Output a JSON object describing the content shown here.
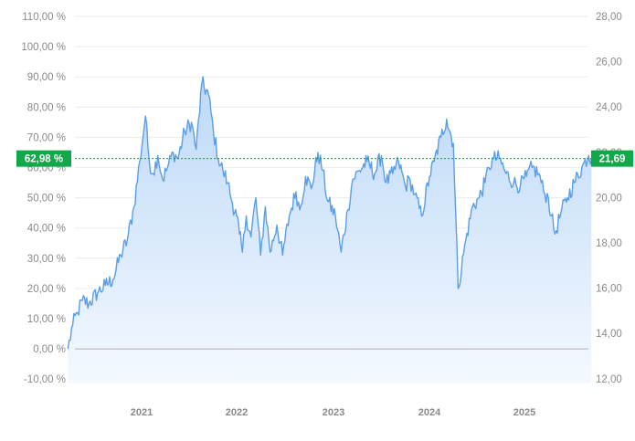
{
  "chart_data": {
    "type": "area",
    "left_axis": {
      "unit": "%",
      "ylim": [
        -15,
        112
      ],
      "ticks": [
        "110,00 %",
        "100,00 %",
        "90,00 %",
        "80,00 %",
        "70,00 %",
        "60,00 %",
        "50,00 %",
        "40,00 %",
        "30,00 %",
        "20,00 %",
        "10,00 %",
        "0,00 %",
        "-10,00 %"
      ]
    },
    "right_axis": {
      "ticks": [
        "28,00",
        "26,00",
        "24,00",
        "22,00",
        "20,00",
        "18,00",
        "16,00",
        "14,00",
        "12,00"
      ]
    },
    "x_ticks": [
      "2021",
      "2022",
      "2023",
      "2024",
      "2025"
    ],
    "current_left_label": "62,98 %",
    "current_right_label": "21,69",
    "current_value_pct": 62.98,
    "baseline_pct": 0,
    "grid": true,
    "colors": {
      "line": "#5a9ee6",
      "fill_top": "#bcd8f7",
      "fill_bottom": "#f4f9ff",
      "badge": "#12a84a",
      "dotted_line": "#1a9a45",
      "baseline": "#b0b0b0",
      "grid": "#ececec"
    },
    "series": [
      {
        "x": [
          2020.23,
          2020.28,
          2020.33,
          2020.38,
          2020.45,
          2020.55,
          2020.62,
          2020.7,
          2020.78,
          2020.85,
          2020.92,
          2020.98,
          2021.04,
          2021.08,
          2021.12,
          2021.17,
          2021.22,
          2021.27,
          2021.33,
          2021.38,
          2021.45,
          2021.52,
          2021.57,
          2021.63,
          2021.7,
          2021.75,
          2021.8,
          2021.85,
          2021.9,
          2021.95,
          2022.0,
          2022.03,
          2022.06,
          2022.1,
          2022.15,
          2022.2,
          2022.25,
          2022.3,
          2022.35,
          2022.42,
          2022.48,
          2022.55,
          2022.62,
          2022.66,
          2022.72,
          2022.78,
          2022.85,
          2022.9,
          2022.95,
          2023.02,
          2023.08,
          2023.15,
          2023.2,
          2023.27,
          2023.35,
          2023.43,
          2023.5,
          2023.55,
          2023.62,
          2023.68,
          2023.75,
          2023.8,
          2023.85,
          2023.92,
          2024.0,
          2024.05,
          2024.12,
          2024.18,
          2024.25,
          2024.3,
          2024.38,
          2024.45,
          2024.52,
          2024.58,
          2024.62,
          2024.67,
          2024.73,
          2024.8,
          2024.88,
          2024.95,
          2025.02,
          2025.08,
          2025.15,
          2025.2,
          2025.25,
          2025.28,
          2025.32,
          2025.38,
          2025.45,
          2025.52,
          2025.6,
          2025.67,
          2025.7
        ],
        "y": [
          0,
          8,
          12,
          16,
          15,
          19,
          21,
          23,
          31,
          36,
          47,
          62,
          77,
          62,
          58,
          64,
          56,
          60,
          65,
          63,
          72,
          75,
          66,
          88,
          84,
          72,
          63,
          59,
          55,
          48,
          44,
          38,
          32,
          44,
          37,
          50,
          31,
          47,
          32,
          41,
          31,
          44,
          52,
          46,
          57,
          53,
          65,
          59,
          49,
          44,
          32,
          46,
          56,
          59,
          62,
          58,
          64,
          55,
          58,
          62,
          54,
          56,
          51,
          44,
          57,
          62,
          70,
          76,
          68,
          20,
          36,
          47,
          50,
          55,
          60,
          63,
          62.98,
          58,
          55,
          54,
          57,
          60,
          58,
          52,
          50,
          44,
          38,
          45,
          50,
          55,
          60,
          64,
          62.98
        ]
      }
    ]
  }
}
